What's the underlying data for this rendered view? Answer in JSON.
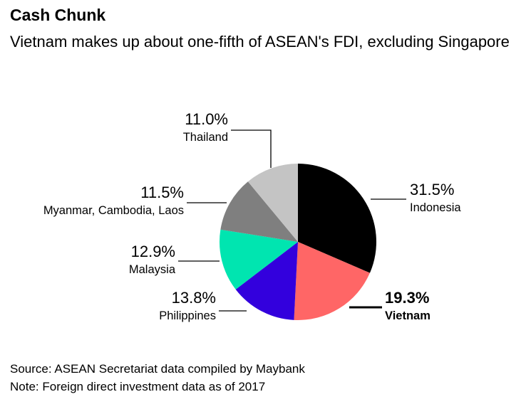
{
  "chart_data": {
    "type": "pie",
    "title": "Cash Chunk",
    "subtitle": "Vietnam makes up about one-fifth of ASEAN's FDI, excluding Singapore",
    "categories": [
      "Indonesia",
      "Vietnam",
      "Philippines",
      "Malaysia",
      "Myanmar, Cambodia, Laos",
      "Thailand"
    ],
    "values": [
      31.5,
      19.3,
      13.8,
      12.9,
      11.5,
      11.0
    ],
    "value_labels": [
      "31.5%",
      "19.3%",
      "13.8%",
      "12.9%",
      "11.5%",
      "11.0%"
    ],
    "colors": [
      "#000000",
      "#ff6666",
      "#3300dd",
      "#00e5b0",
      "#7f7f7f",
      "#c4c4c4"
    ],
    "highlight": "Vietnam",
    "source": "Source: ASEAN Secretariat data compiled by Maybank",
    "note": "Note: Foreign direct investment data as of 2017"
  }
}
